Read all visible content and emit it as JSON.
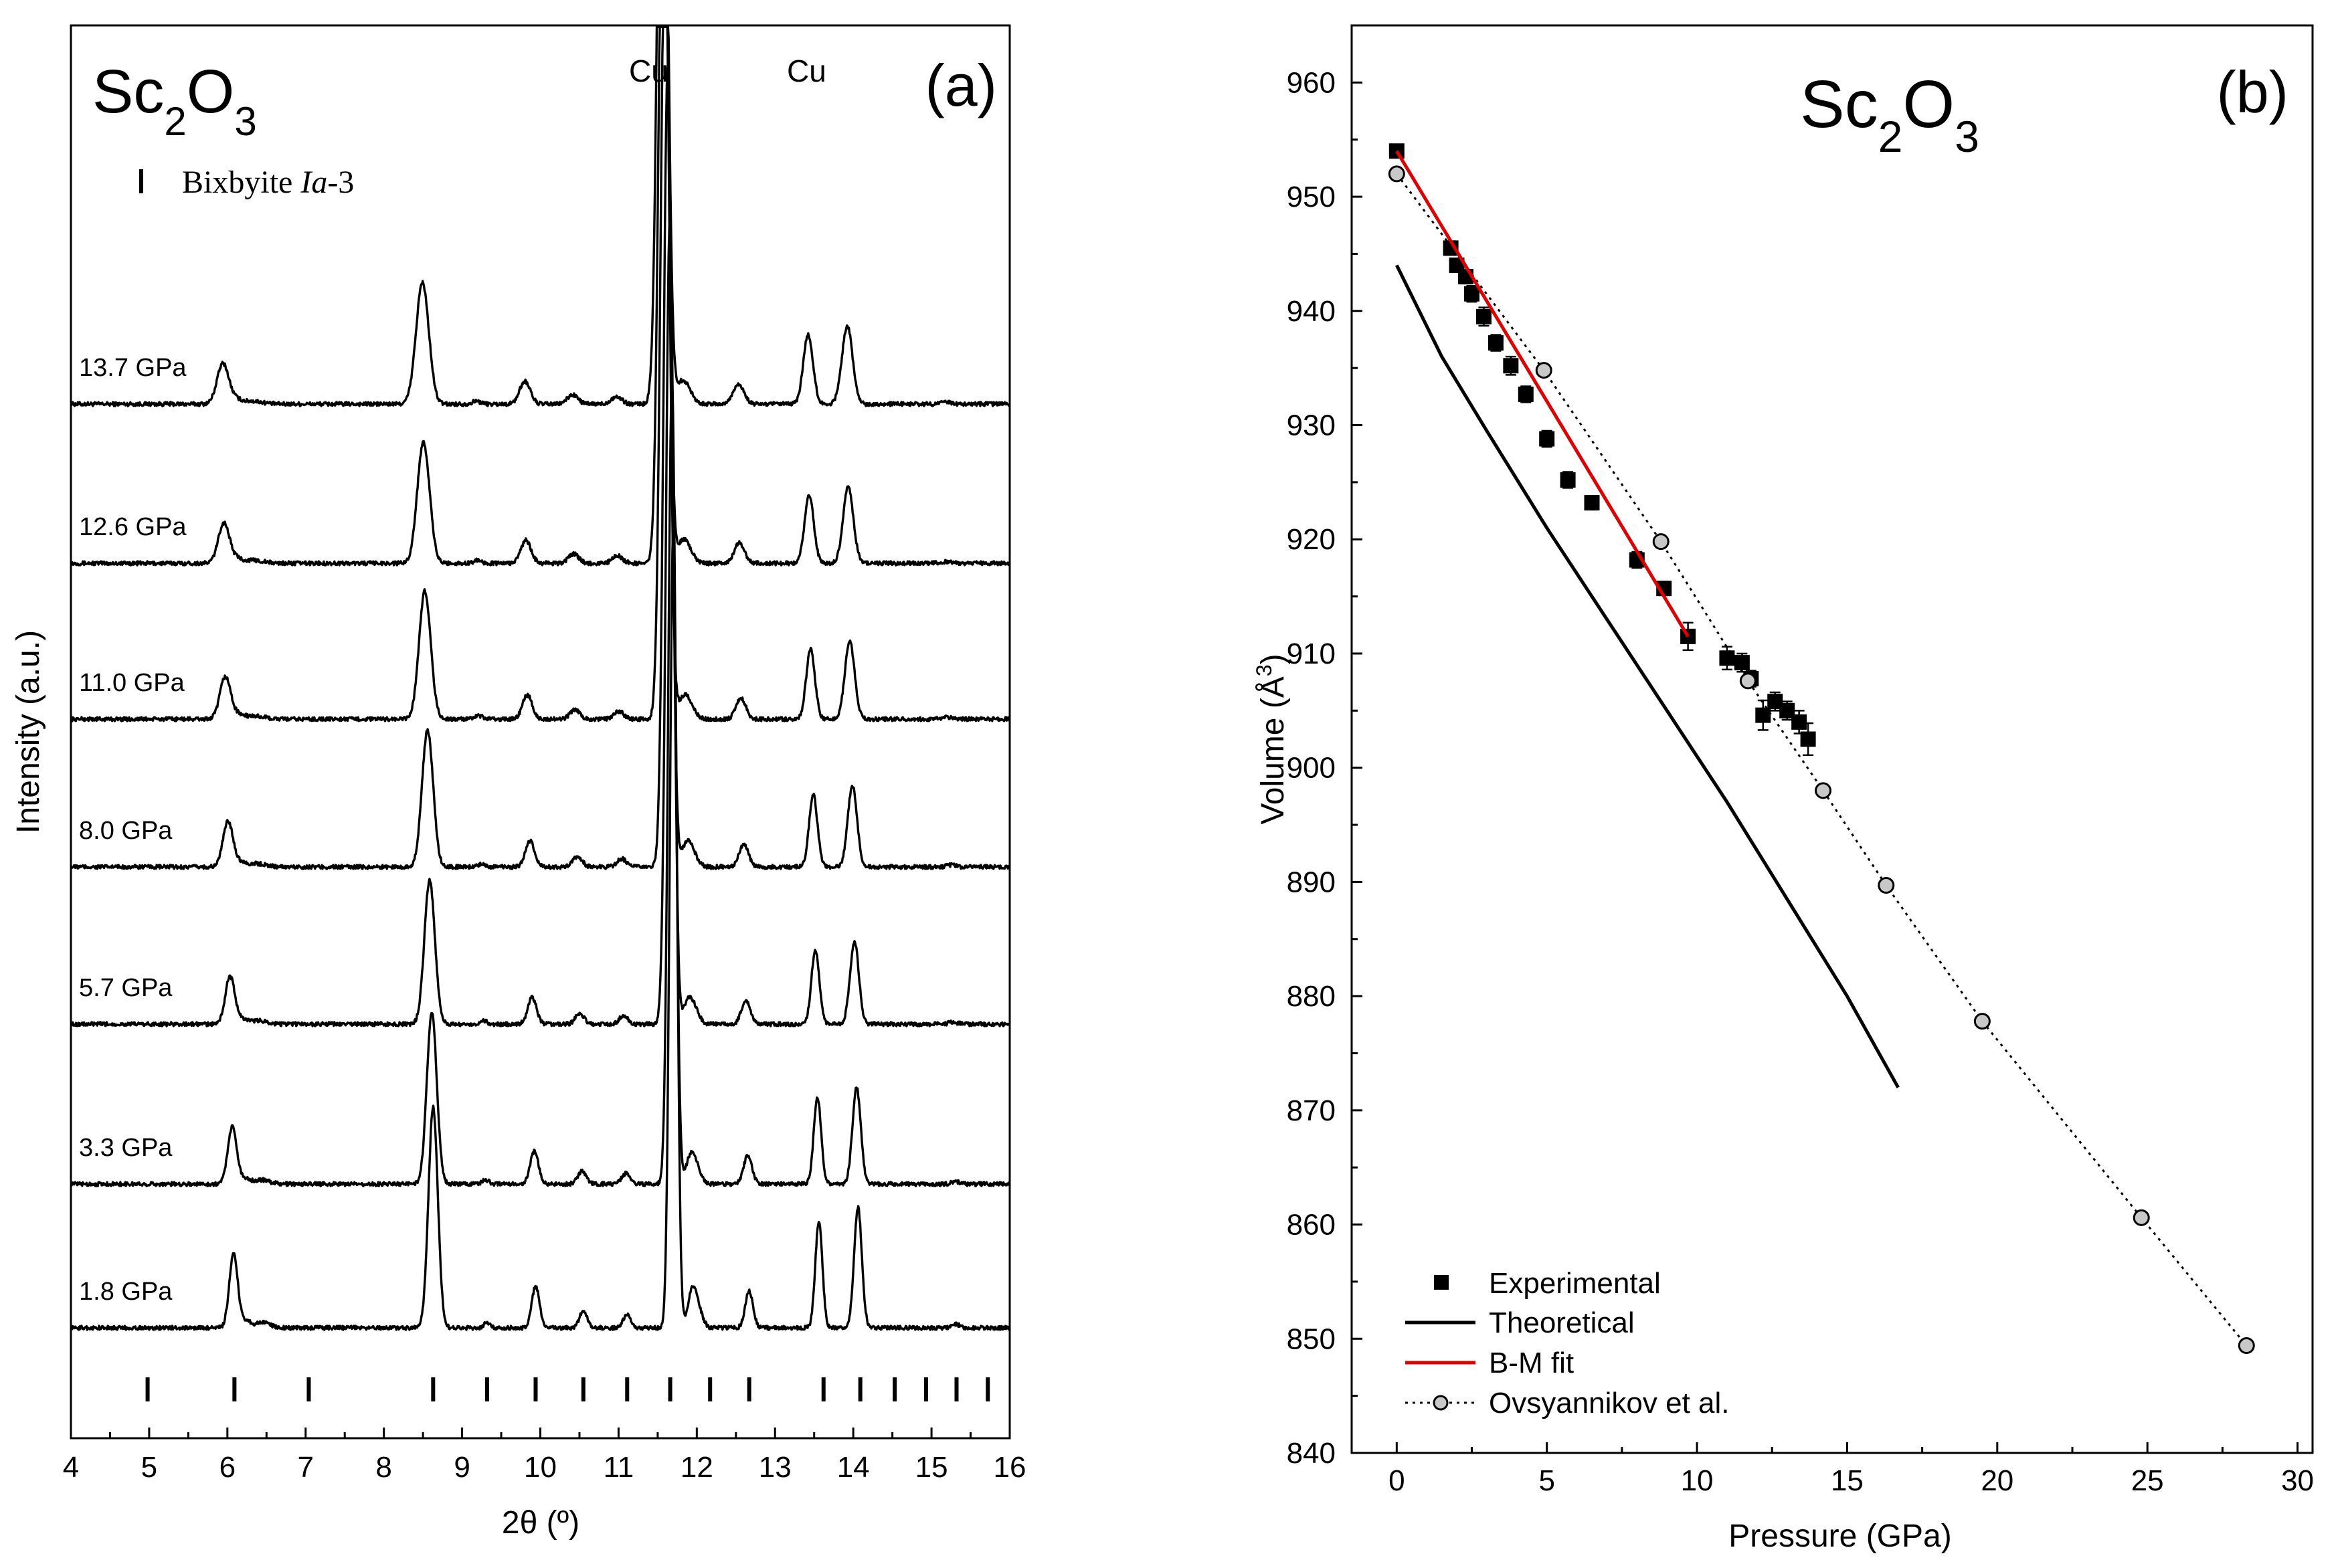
{
  "chart_data": [
    {
      "id": "a",
      "type": "line",
      "panel_label": "(a)",
      "title": "Sc2O3",
      "xlabel": "2θ (º)",
      "ylabel": "Intensity (a.u.)",
      "xlim": [
        4,
        16
      ],
      "xticks": [
        "4",
        "5",
        "6",
        "7",
        "8",
        "9",
        "10",
        "11",
        "12",
        "13",
        "14",
        "15",
        "16"
      ],
      "annotations": [
        "Cu",
        "Cu"
      ],
      "reflections_label": "Bixbyite Ia-3",
      "reflection_positions": [
        4.98,
        6.09,
        7.04,
        8.63,
        9.32,
        9.94,
        10.55,
        11.11,
        11.66,
        12.17,
        12.67,
        13.62,
        14.09,
        14.53,
        14.93,
        15.32,
        15.72
      ],
      "series": [
        {
          "name": "13.7 GPa",
          "pressure": 13.7
        },
        {
          "name": "12.6 GPa",
          "pressure": 12.6
        },
        {
          "name": "11.0 GPa",
          "pressure": 11.0
        },
        {
          "name": "8.0 GPa",
          "pressure": 8.0
        },
        {
          "name": "5.7 GPa",
          "pressure": 5.7
        },
        {
          "name": "3.3 GPa",
          "pressure": 3.3
        },
        {
          "name": "1.8 GPa",
          "pressure": 1.8
        }
      ]
    },
    {
      "id": "b",
      "type": "scatter",
      "panel_label": "(b)",
      "title": "Sc2O3",
      "xlabel": "Pressure (GPa)",
      "ylabel": "Volume (Å3)",
      "xlim": [
        -1.5,
        30.5
      ],
      "ylim": [
        840,
        965
      ],
      "xticks": [
        0,
        5,
        10,
        15,
        20,
        25,
        30
      ],
      "yticks": [
        840,
        850,
        860,
        870,
        880,
        890,
        900,
        910,
        920,
        930,
        940,
        950,
        960
      ],
      "legend": [
        "Experimental",
        "Theoretical",
        "B-M fit",
        "Ovsyannikov et al."
      ],
      "experimental": {
        "x": [
          0,
          1.8,
          2.0,
          2.3,
          2.5,
          2.9,
          3.3,
          3.8,
          4.3,
          5.0,
          5.7,
          6.5,
          8.0,
          8.9,
          9.7,
          11.0,
          11.5,
          11.8,
          12.2,
          12.6,
          13.0,
          13.4,
          13.7
        ],
        "y": [
          954.0,
          945.5,
          944.0,
          943.0,
          941.5,
          939.5,
          937.2,
          935.2,
          932.7,
          928.8,
          925.2,
          923.2,
          918.2,
          915.7,
          911.5,
          909.6,
          909.2,
          907.8,
          904.6,
          905.8,
          905.0,
          904.0,
          902.5
        ],
        "err": [
          0.5,
          0.6,
          0.6,
          0.6,
          0.7,
          0.8,
          0.7,
          0.8,
          0.7,
          0.7,
          0.7,
          0.6,
          0.7,
          0.6,
          1.2,
          1.0,
          0.8,
          0.7,
          1.3,
          0.8,
          0.8,
          1.0,
          1.4
        ]
      },
      "theoretical": {
        "x": [
          0,
          1.5,
          3,
          5,
          7,
          9,
          11,
          13,
          15,
          16.7
        ],
        "y": [
          944,
          936,
          929.5,
          921,
          913,
          905,
          897,
          888.5,
          880,
          872
        ]
      },
      "bm_fit": {
        "x": [
          0,
          9.7
        ],
        "y": [
          954.0,
          911.5
        ]
      },
      "ovsyannikov": {
        "x": [
          0,
          4.9,
          8.8,
          11.7,
          14.2,
          16.3,
          19.5,
          24.8,
          28.3
        ],
        "y": [
          952.0,
          934.8,
          919.8,
          907.6,
          898.0,
          889.7,
          877.8,
          860.6,
          849.4
        ]
      }
    }
  ]
}
